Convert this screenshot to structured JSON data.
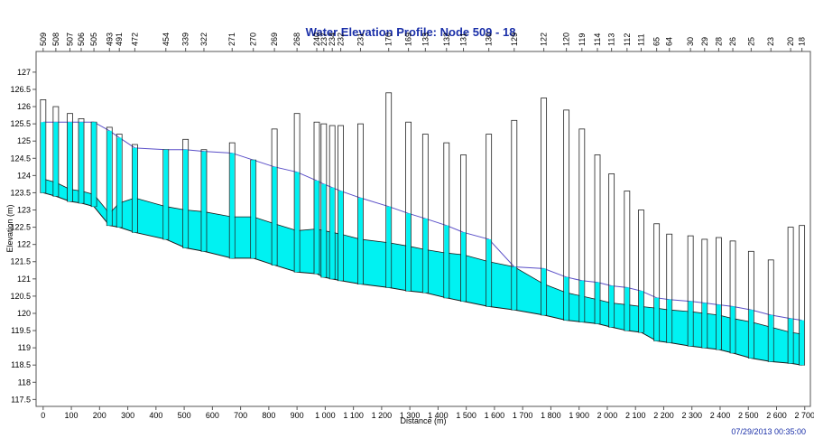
{
  "chart_data": {
    "type": "profile",
    "title": "Water Elevation Profile:  Node 509 - 18",
    "x_label": "Distance (m)",
    "y_label": "Elevation (m)",
    "timestamp": "07/29/2013 00:35:00",
    "xlim": [
      -25,
      2720
    ],
    "ylim": [
      117.3,
      127.6
    ],
    "xticks": [
      0,
      100,
      200,
      300,
      400,
      500,
      600,
      700,
      800,
      900,
      {
        "value": 1000,
        "label": "1 000"
      },
      {
        "value": 1100,
        "label": "1 100"
      },
      {
        "value": 1200,
        "label": "1 200"
      },
      {
        "value": 1300,
        "label": "1 300"
      },
      {
        "value": 1400,
        "label": "1 400"
      },
      {
        "value": 1500,
        "label": "1 500"
      },
      {
        "value": 1600,
        "label": "1 600"
      },
      {
        "value": 1700,
        "label": "1 700"
      },
      {
        "value": 1800,
        "label": "1 800"
      },
      {
        "value": 1900,
        "label": "1 900"
      },
      {
        "value": 2000,
        "label": "2 000"
      },
      {
        "value": 2100,
        "label": "2 100"
      },
      {
        "value": 2200,
        "label": "2 200"
      },
      {
        "value": 2300,
        "label": "2 300"
      },
      {
        "value": 2400,
        "label": "2 400"
      },
      {
        "value": 2500,
        "label": "2 500"
      },
      {
        "value": 2600,
        "label": "2 600"
      },
      {
        "value": 2700,
        "label": "2 700"
      }
    ],
    "yticks": [
      117.5,
      118,
      118.5,
      119,
      119.5,
      120,
      120.5,
      121,
      121.5,
      122,
      122.5,
      123,
      123.5,
      124,
      124.5,
      125,
      125.5,
      126,
      126.5,
      127
    ],
    "node_labels": [
      "509",
      "508",
      "507",
      "506",
      "505",
      "493",
      "491",
      "472",
      "454",
      "339",
      "322",
      "271",
      "270",
      "269",
      "268",
      "240",
      "237",
      "234",
      "232",
      "231",
      "170",
      "169",
      "133",
      "132",
      "131",
      "130",
      "129",
      "122",
      "120",
      "119",
      "114",
      "113",
      "112",
      "111",
      "65",
      "64",
      "30",
      "29",
      "28",
      "26",
      "25",
      "23",
      "20",
      "18"
    ],
    "x": [
      0,
      45,
      95,
      135,
      180,
      235,
      270,
      325,
      435,
      505,
      570,
      670,
      745,
      820,
      900,
      970,
      995,
      1025,
      1055,
      1125,
      1225,
      1295,
      1355,
      1430,
      1490,
      1580,
      1670,
      1775,
      1855,
      1910,
      1965,
      2015,
      2070,
      2120,
      2175,
      2220,
      2295,
      2345,
      2395,
      2445,
      2510,
      2580,
      2650,
      2690
    ],
    "invert": [
      123.5,
      123.4,
      123.25,
      123.2,
      123.1,
      122.55,
      122.5,
      122.35,
      122.15,
      121.9,
      121.8,
      121.6,
      121.6,
      121.4,
      121.2,
      121.15,
      121.05,
      121.0,
      120.95,
      120.85,
      120.75,
      120.65,
      120.6,
      120.45,
      120.35,
      120.2,
      120.1,
      119.95,
      119.8,
      119.75,
      119.7,
      119.6,
      119.5,
      119.45,
      119.2,
      119.15,
      119.05,
      119.0,
      118.95,
      118.85,
      118.7,
      118.6,
      118.55,
      118.5
    ],
    "crown": [
      123.9,
      123.8,
      123.6,
      123.55,
      123.45,
      122.9,
      123.2,
      123.35,
      123.1,
      123.0,
      122.95,
      122.8,
      122.8,
      122.6,
      122.4,
      122.45,
      122.4,
      122.35,
      122.3,
      122.15,
      122.05,
      121.95,
      121.85,
      121.75,
      121.7,
      121.5,
      121.35,
      120.85,
      120.6,
      120.5,
      120.4,
      120.3,
      120.25,
      120.2,
      120.15,
      120.1,
      120.05,
      120.0,
      119.95,
      119.85,
      119.75,
      119.6,
      119.45,
      119.4
    ],
    "water": [
      125.55,
      125.55,
      125.55,
      125.55,
      125.55,
      125.3,
      125.1,
      124.8,
      124.75,
      124.75,
      124.7,
      124.65,
      124.45,
      124.25,
      124.1,
      123.85,
      123.75,
      123.65,
      123.55,
      123.35,
      123.1,
      122.9,
      122.75,
      122.55,
      122.35,
      122.15,
      121.35,
      121.3,
      121.05,
      120.95,
      120.9,
      120.8,
      120.75,
      120.65,
      120.45,
      120.4,
      120.35,
      120.3,
      120.25,
      120.2,
      120.1,
      119.95,
      119.85,
      119.8
    ],
    "rim": [
      126.2,
      126.0,
      125.8,
      125.65,
      125.55,
      125.4,
      125.2,
      124.9,
      124.75,
      125.05,
      124.75,
      124.95,
      124.45,
      125.35,
      125.8,
      125.55,
      125.5,
      125.45,
      125.45,
      125.5,
      126.4,
      125.55,
      125.2,
      124.95,
      124.6,
      125.2,
      125.6,
      126.25,
      125.9,
      125.35,
      124.6,
      124.05,
      123.55,
      123.0,
      122.6,
      122.3,
      122.25,
      122.15,
      122.2,
      122.1,
      121.8,
      121.55,
      122.5,
      122.55
    ],
    "fill_color": "#00f2f2",
    "water_color": "#5a4fc8",
    "pipe_color": "#1a1a1a"
  }
}
